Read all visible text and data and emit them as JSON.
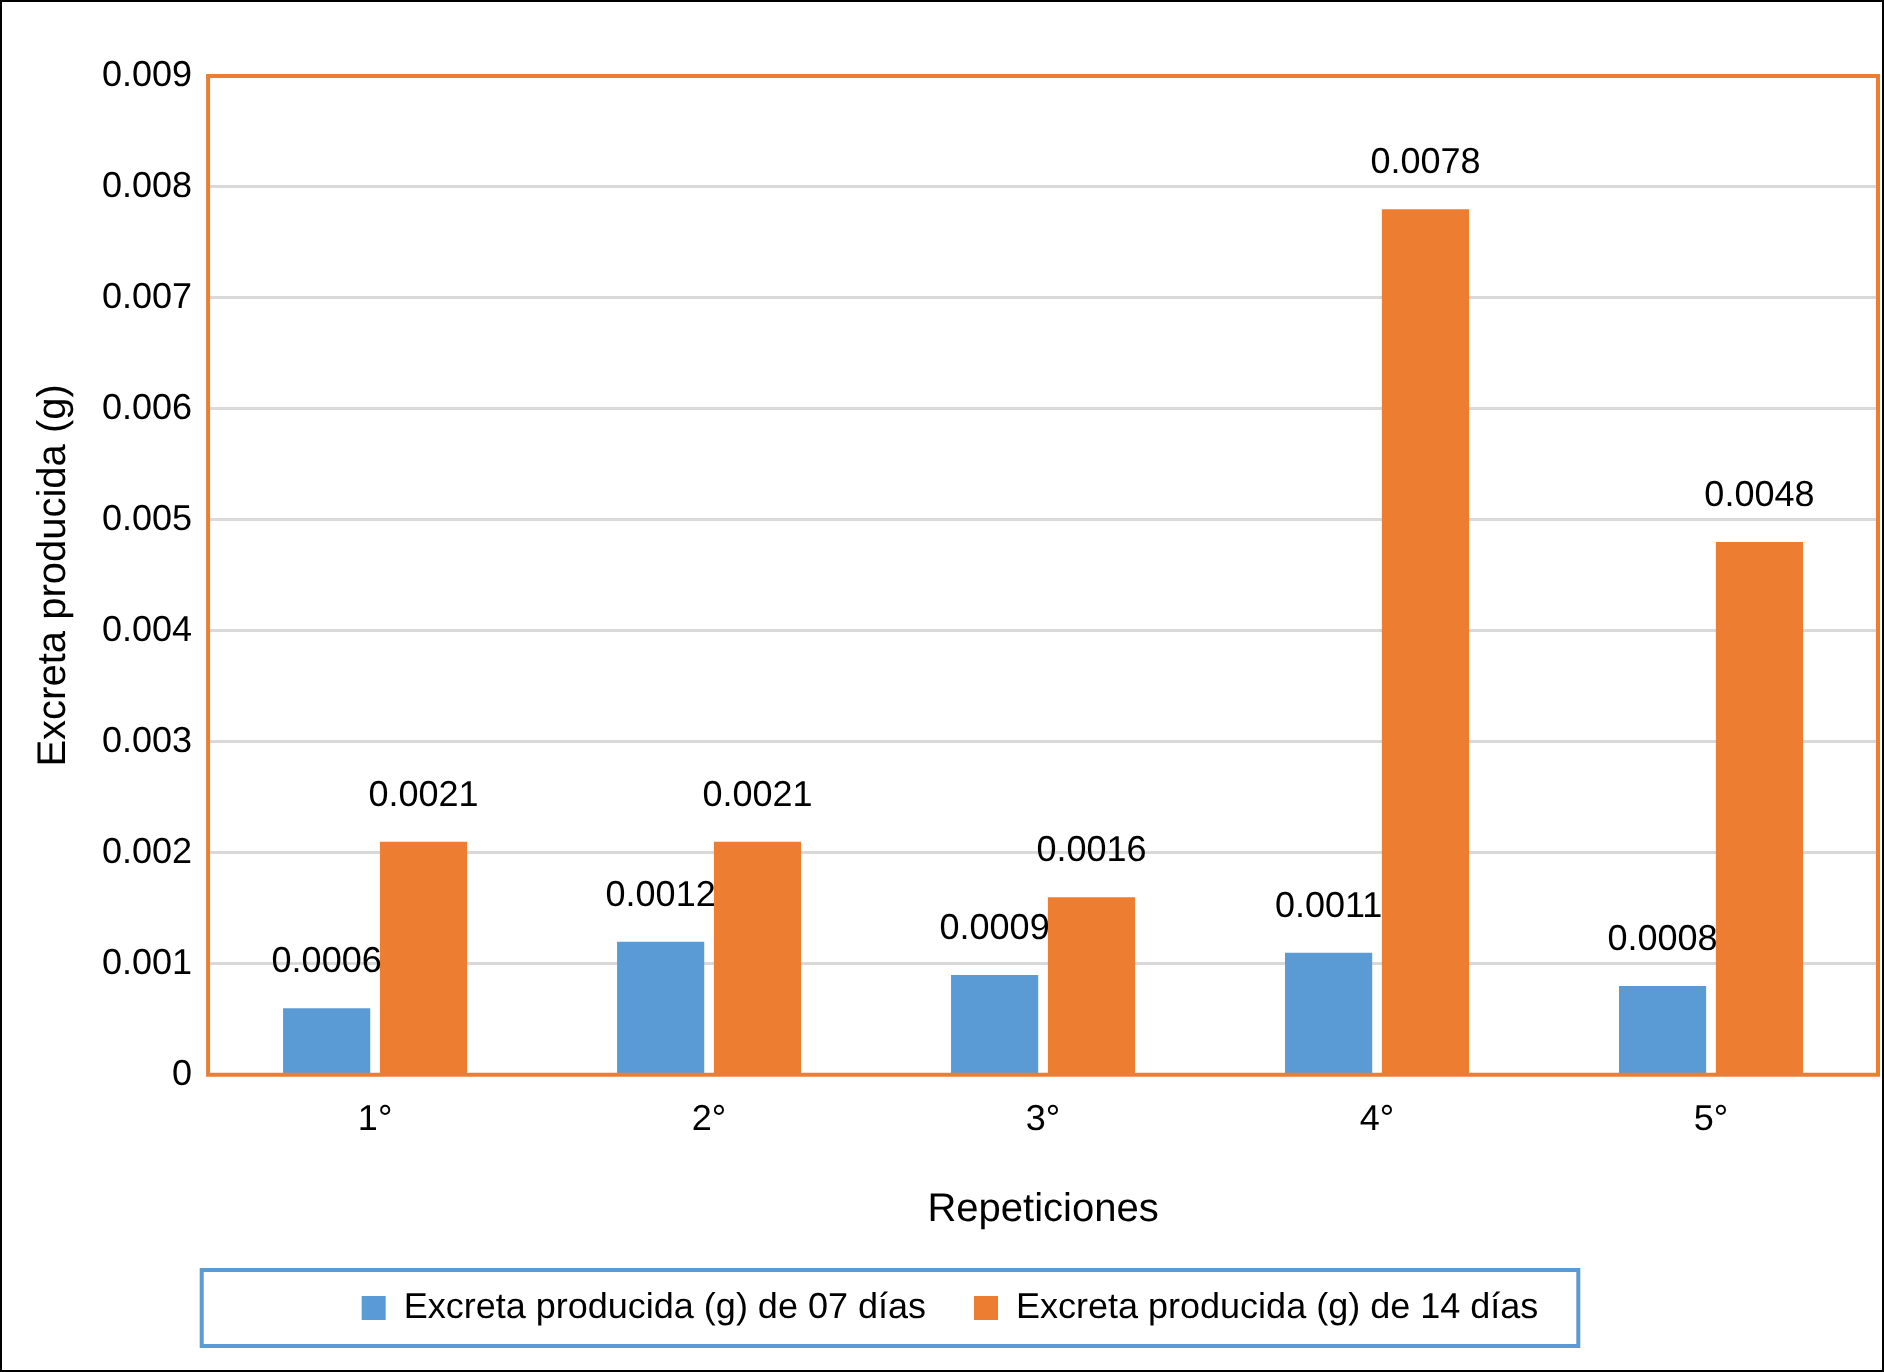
{
  "chart_data": {
    "type": "bar",
    "xlabel": "Repeticiones",
    "ylabel": "Excreta producida (g)",
    "categories": [
      "1°",
      "2°",
      "3°",
      "4°",
      "5°"
    ],
    "series": [
      {
        "name": "Excreta producida (g) de 07 días",
        "color": "#5b9bd5",
        "values": [
          0.0006,
          0.0012,
          0.0009,
          0.0011,
          0.0008
        ]
      },
      {
        "name": "Excreta producida (g) de 14 días",
        "color": "#ed7d31",
        "values": [
          0.0021,
          0.0021,
          0.0016,
          0.0078,
          0.0048
        ]
      }
    ],
    "ylim": [
      0,
      0.009
    ],
    "yticks": [
      0,
      0.001,
      0.002,
      0.003,
      0.004,
      0.005,
      0.006,
      0.007,
      0.008,
      0.009
    ],
    "grid": "y",
    "legend": "bottom",
    "data_labels": true
  }
}
